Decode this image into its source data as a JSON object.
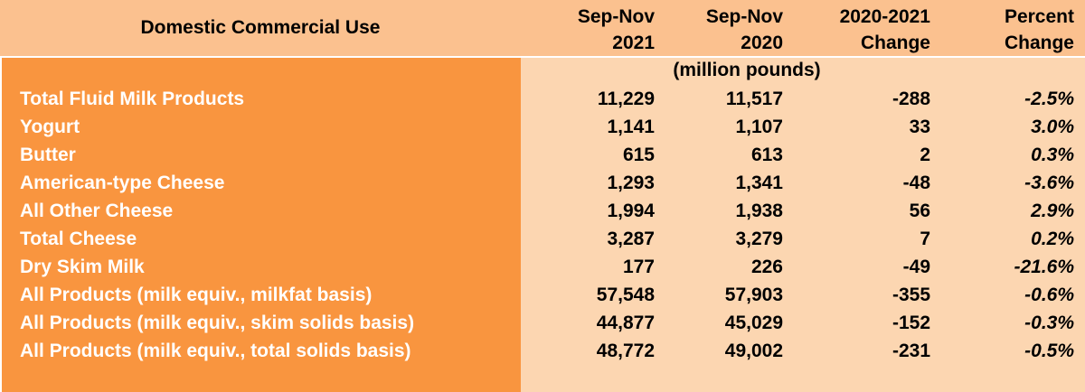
{
  "header": {
    "title": "Domestic Commercial Use",
    "col1": {
      "line1": "Sep-Nov",
      "line2": "2021"
    },
    "col2": {
      "line1": "Sep-Nov",
      "line2": "2020"
    },
    "col3": {
      "line1": "2020-2021",
      "line2": "Change"
    },
    "col4": {
      "line1": "Percent",
      "line2": "Change"
    }
  },
  "units": "(million pounds)",
  "rows": [
    {
      "label": "Total Fluid Milk Products",
      "v2021": "11,229",
      "v2020": "11,517",
      "change": "-288",
      "pct": "-2.5%"
    },
    {
      "label": "Yogurt",
      "v2021": "1,141",
      "v2020": "1,107",
      "change": "33",
      "pct": "3.0%"
    },
    {
      "label": "Butter",
      "v2021": "615",
      "v2020": "613",
      "change": "2",
      "pct": "0.3%"
    },
    {
      "label": "American-type Cheese",
      "v2021": "1,293",
      "v2020": "1,341",
      "change": "-48",
      "pct": "-3.6%"
    },
    {
      "label": "All Other Cheese",
      "v2021": "1,994",
      "v2020": "1,938",
      "change": "56",
      "pct": "2.9%"
    },
    {
      "label": "Total Cheese",
      "v2021": "3,287",
      "v2020": "3,279",
      "change": "7",
      "pct": "0.2%"
    },
    {
      "label": "Dry Skim Milk",
      "v2021": "177",
      "v2020": "226",
      "change": "-49",
      "pct": "-21.6%"
    },
    {
      "label": "All Products (milk equiv., milkfat basis)",
      "v2021": "57,548",
      "v2020": "57,903",
      "change": "-355",
      "pct": "-0.6%"
    },
    {
      "label": "All Products (milk equiv., skim solids basis)",
      "v2021": "44,877",
      "v2020": "45,029",
      "change": "-152",
      "pct": "-0.3%"
    },
    {
      "label": "All Products (milk equiv., total solids basis)",
      "v2021": "48,772",
      "v2020": "49,002",
      "change": "-231",
      "pct": "-0.5%"
    }
  ],
  "colors": {
    "header_bg": "#fbc18f",
    "label_bg": "#f9953f",
    "data_bg": "#fcd6b1"
  }
}
